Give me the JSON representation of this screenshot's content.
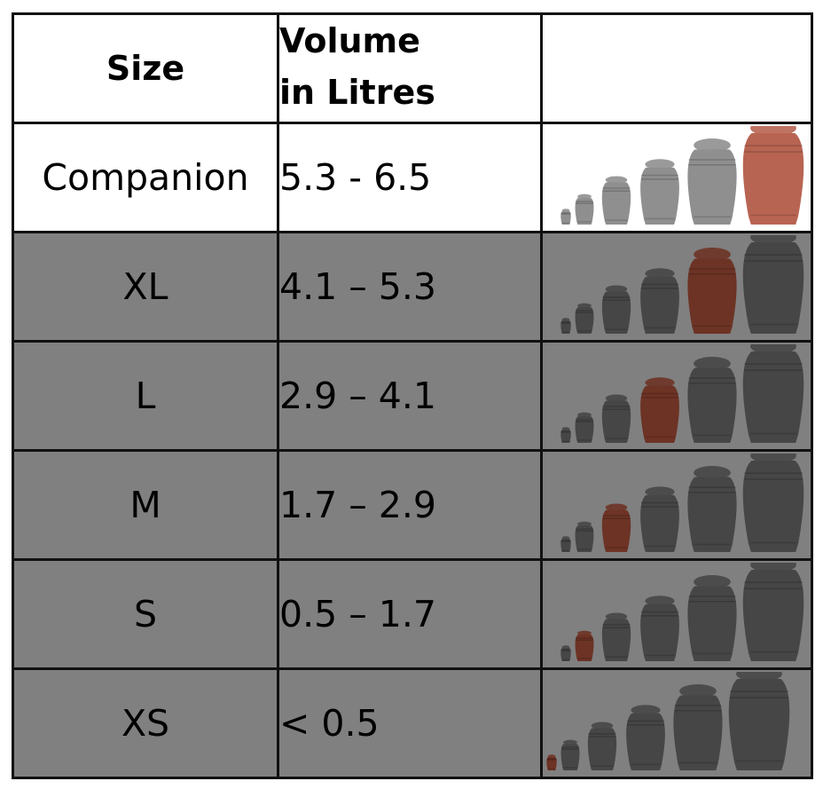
{
  "table": {
    "headers": {
      "size": "Size",
      "volume_line1": "Volume",
      "volume_line2": "in Litres",
      "image": ""
    },
    "rows": [
      {
        "size": "Companion",
        "volume": "5.3 - 6.5",
        "highlight": 5,
        "theme": "light"
      },
      {
        "size": "XL",
        "volume": "4.1 – 5.3",
        "highlight": 4,
        "theme": "dark"
      },
      {
        "size": "L",
        "volume": "2.9 – 4.1",
        "highlight": 3,
        "theme": "dark"
      },
      {
        "size": "M",
        "volume": "1.7 – 2.9",
        "highlight": 2,
        "theme": "dark"
      },
      {
        "size": "S",
        "volume": "0.5 – 1.7",
        "highlight": 1,
        "theme": "dark"
      },
      {
        "size": "XS",
        "volume": "< 0.5",
        "highlight": 0,
        "theme": "dark"
      }
    ]
  },
  "colors": {
    "light_urn": "#8f8f8f",
    "light_highlight": "#b86452",
    "dark_urn": "#464646",
    "dark_highlight": "#6d3325",
    "dark_row_bg": "#808080",
    "border": "#111111"
  }
}
